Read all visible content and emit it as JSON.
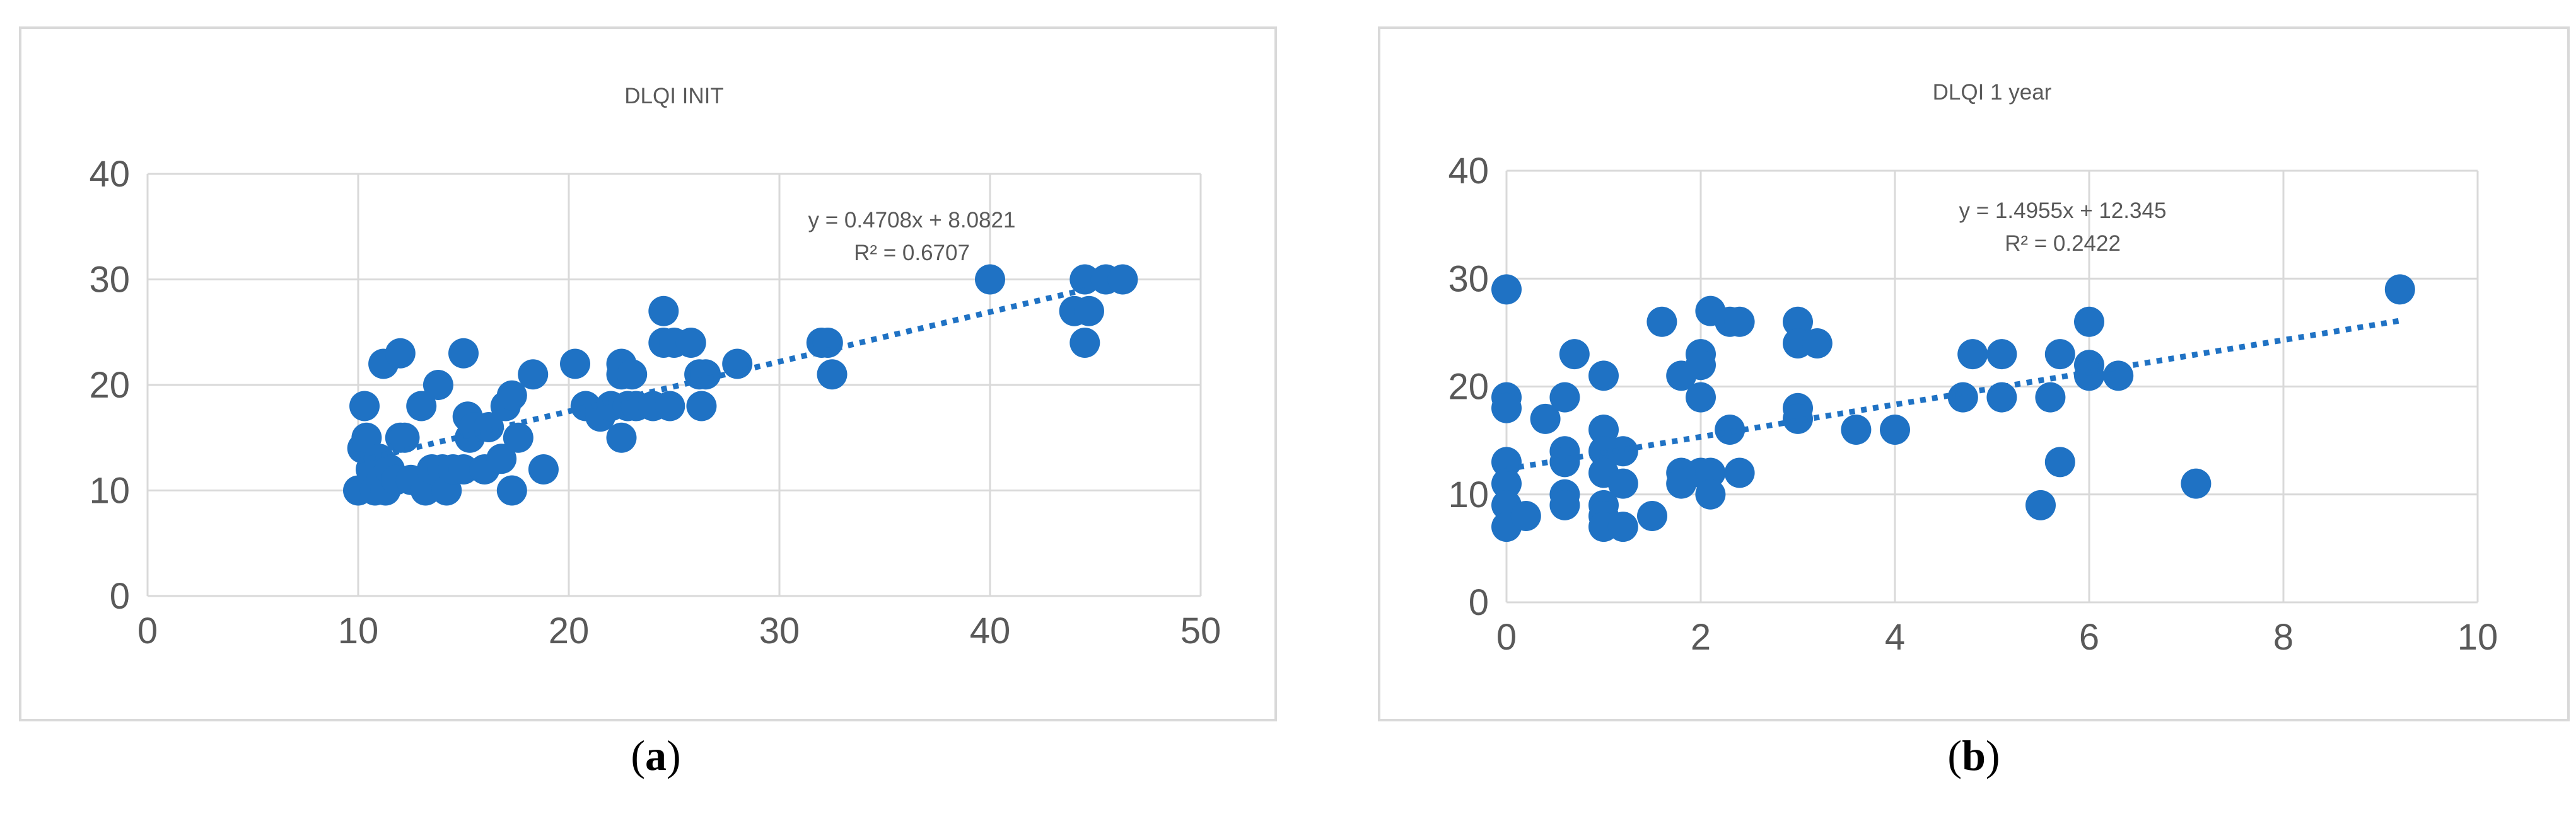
{
  "chart_data": [
    {
      "type": "scatter",
      "title": "DLQI INIT",
      "xlim": [
        0,
        50
      ],
      "ylim": [
        0,
        40
      ],
      "xticks": [
        0,
        10,
        20,
        30,
        40,
        50
      ],
      "yticks": [
        0,
        10,
        20,
        30,
        40
      ],
      "grid": true,
      "trendline": {
        "type": "linear",
        "slope": 0.4708,
        "intercept": 8.0821,
        "x_range": [
          10,
          44.5
        ],
        "style": "dotted"
      },
      "equation": "y = 0.4708x + 8.0821",
      "r2": "R² = 0.6707",
      "caption_letter": "a",
      "color": "#1f72c4",
      "points": [
        [
          10,
          10
        ],
        [
          10.2,
          14
        ],
        [
          10.3,
          18
        ],
        [
          10.4,
          15
        ],
        [
          10.6,
          12
        ],
        [
          10.8,
          10
        ],
        [
          11,
          13
        ],
        [
          11.1,
          11
        ],
        [
          11.2,
          22
        ],
        [
          11.3,
          10
        ],
        [
          11.5,
          12
        ],
        [
          11.8,
          11
        ],
        [
          12,
          15
        ],
        [
          12,
          23
        ],
        [
          12.2,
          15
        ],
        [
          12.5,
          11
        ],
        [
          13,
          18
        ],
        [
          13.2,
          10
        ],
        [
          13.5,
          12
        ],
        [
          13.8,
          20
        ],
        [
          14,
          12
        ],
        [
          14.2,
          10
        ],
        [
          14.5,
          12
        ],
        [
          15,
          23
        ],
        [
          15,
          12
        ],
        [
          15.2,
          17
        ],
        [
          15.3,
          15
        ],
        [
          15.5,
          16
        ],
        [
          16,
          12
        ],
        [
          16.2,
          16
        ],
        [
          16.8,
          13
        ],
        [
          17,
          18
        ],
        [
          17.3,
          19
        ],
        [
          17.3,
          10
        ],
        [
          17.6,
          15
        ],
        [
          18.3,
          21
        ],
        [
          18.8,
          12
        ],
        [
          20.3,
          22
        ],
        [
          20.8,
          18
        ],
        [
          21.5,
          17
        ],
        [
          22,
          18
        ],
        [
          22.5,
          22
        ],
        [
          22.5,
          21
        ],
        [
          22.5,
          15
        ],
        [
          22.8,
          18
        ],
        [
          23,
          21
        ],
        [
          23.2,
          18
        ],
        [
          24,
          18
        ],
        [
          24.5,
          27
        ],
        [
          24.5,
          24
        ],
        [
          24.8,
          18
        ],
        [
          25,
          24
        ],
        [
          25.8,
          24
        ],
        [
          26.2,
          21
        ],
        [
          26.3,
          18
        ],
        [
          26.5,
          21
        ],
        [
          28,
          22
        ],
        [
          32,
          24
        ],
        [
          32.3,
          24
        ],
        [
          32.5,
          21
        ],
        [
          40,
          30
        ],
        [
          44,
          27
        ],
        [
          44.5,
          30
        ],
        [
          44.7,
          27
        ],
        [
          44.5,
          24
        ],
        [
          45.5,
          30
        ],
        [
          46.3,
          30
        ]
      ]
    },
    {
      "type": "scatter",
      "title": "DLQI 1 year",
      "xlim": [
        0,
        10
      ],
      "ylim": [
        0,
        40
      ],
      "xticks": [
        0,
        2,
        4,
        6,
        8,
        10
      ],
      "yticks": [
        0,
        10,
        20,
        30,
        40
      ],
      "grid": true,
      "trendline": {
        "type": "linear",
        "slope": 1.4955,
        "intercept": 12.345,
        "x_range": [
          0,
          9.2
        ],
        "style": "dotted"
      },
      "equation": "y = 1.4955x + 12.345",
      "r2": "R² = 0.2422",
      "caption_letter": "b",
      "color": "#1f72c4",
      "points": [
        [
          0,
          29
        ],
        [
          0,
          19
        ],
        [
          0,
          18
        ],
        [
          0,
          13
        ],
        [
          0,
          11
        ],
        [
          0,
          9
        ],
        [
          0,
          7
        ],
        [
          0.2,
          8
        ],
        [
          0.4,
          17
        ],
        [
          0.7,
          23
        ],
        [
          0.6,
          19
        ],
        [
          0.6,
          14
        ],
        [
          0.6,
          13
        ],
        [
          0.6,
          10
        ],
        [
          0.6,
          9
        ],
        [
          1,
          21
        ],
        [
          1,
          16
        ],
        [
          1,
          14
        ],
        [
          1,
          12
        ],
        [
          1,
          9
        ],
        [
          1,
          8
        ],
        [
          1,
          7
        ],
        [
          1.2,
          14
        ],
        [
          1.2,
          11
        ],
        [
          1.2,
          7
        ],
        [
          1.5,
          8
        ],
        [
          1.6,
          26
        ],
        [
          1.8,
          21
        ],
        [
          1.8,
          12
        ],
        [
          1.8,
          11
        ],
        [
          2,
          23
        ],
        [
          2,
          22
        ],
        [
          2,
          19
        ],
        [
          2,
          12
        ],
        [
          2.1,
          27
        ],
        [
          2.1,
          12
        ],
        [
          2.1,
          10
        ],
        [
          2.3,
          26
        ],
        [
          2.3,
          16
        ],
        [
          2.4,
          26
        ],
        [
          2.4,
          12
        ],
        [
          3,
          26
        ],
        [
          3,
          24
        ],
        [
          3,
          18
        ],
        [
          3,
          17
        ],
        [
          3.2,
          24
        ],
        [
          3.6,
          16
        ],
        [
          4,
          16
        ],
        [
          4.7,
          19
        ],
        [
          4.8,
          23
        ],
        [
          5.1,
          23
        ],
        [
          5.1,
          19
        ],
        [
          5.5,
          9
        ],
        [
          5.6,
          19
        ],
        [
          5.7,
          23
        ],
        [
          5.7,
          13
        ],
        [
          6,
          26
        ],
        [
          6,
          22
        ],
        [
          6,
          21
        ],
        [
          6.3,
          21
        ],
        [
          7.1,
          11
        ],
        [
          9.2,
          29
        ]
      ]
    }
  ]
}
